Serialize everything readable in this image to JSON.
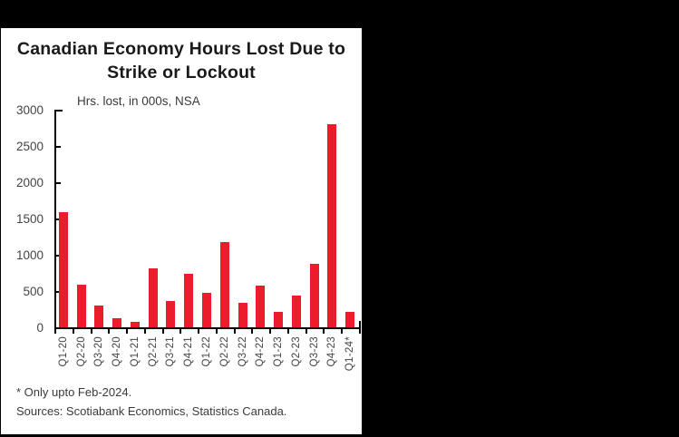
{
  "chart_data": {
    "type": "bar",
    "title_line1": "Canadian Economy Hours Lost Due to",
    "title_line2": "Strike or Lockout",
    "subtitle": "Hrs. lost, in 000s, NSA",
    "categories": [
      "Q1-20",
      "Q2-20",
      "Q3-20",
      "Q4-20",
      "Q1-21",
      "Q2-21",
      "Q3-21",
      "Q4-21",
      "Q1-22",
      "Q2-22",
      "Q3-22",
      "Q4-22",
      "Q1-23",
      "Q2-23",
      "Q3-23",
      "Q4-23",
      "Q1-24*"
    ],
    "values": [
      1590,
      590,
      300,
      120,
      70,
      810,
      365,
      735,
      480,
      1175,
      340,
      570,
      215,
      440,
      880,
      2800,
      215
    ],
    "y_ticks": [
      0,
      500,
      1000,
      1500,
      2000,
      2500,
      3000
    ],
    "ylim": [
      0,
      3000
    ],
    "xlabel": "",
    "ylabel": "",
    "grid": "off",
    "legend": "none",
    "bar_color": "#EB1D2C",
    "axis_color": "#000000",
    "tick_label_color": "#444444",
    "background_color": "#000000",
    "panel_color": "#ffffff",
    "footnote": "* Only upto Feb-2024.",
    "sources": "Sources: Scotiabank Economics, Statistics Canada."
  }
}
